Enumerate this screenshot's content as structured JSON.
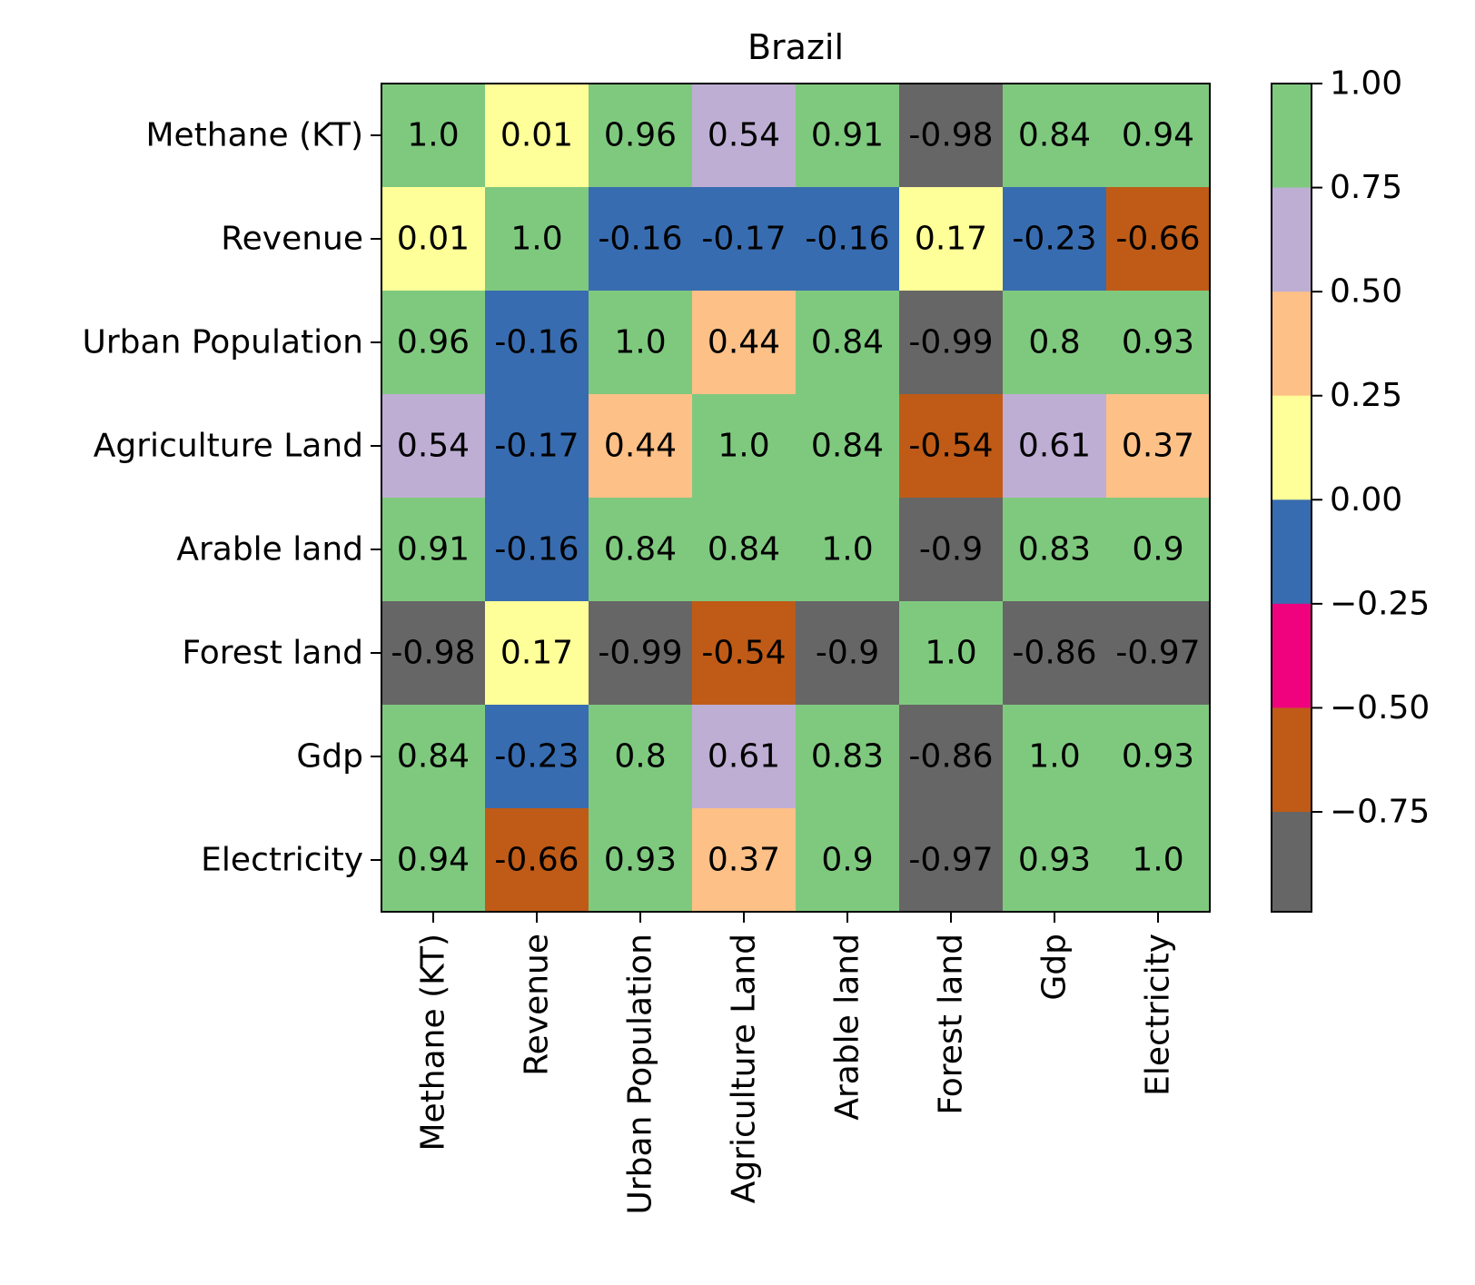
{
  "chart_data": {
    "type": "heatmap",
    "title": "Brazil",
    "xlabel": "",
    "ylabel": "",
    "labels": [
      "Methane (KT)",
      "Revenue",
      "Urban Population",
      "Agriculture Land",
      "Arable land",
      "Forest land",
      "Gdp",
      "Electricity"
    ],
    "values": [
      [
        1.0,
        0.01,
        0.96,
        0.54,
        0.91,
        -0.98,
        0.84,
        0.94
      ],
      [
        0.01,
        1.0,
        -0.16,
        -0.17,
        -0.16,
        0.17,
        -0.23,
        -0.66
      ],
      [
        0.96,
        -0.16,
        1.0,
        0.44,
        0.84,
        -0.99,
        0.8,
        0.93
      ],
      [
        0.54,
        -0.17,
        0.44,
        1.0,
        0.84,
        -0.54,
        0.61,
        0.37
      ],
      [
        0.91,
        -0.16,
        0.84,
        0.84,
        1.0,
        -0.9,
        0.83,
        0.9
      ],
      [
        -0.98,
        0.17,
        -0.99,
        -0.54,
        -0.9,
        1.0,
        -0.86,
        -0.97
      ],
      [
        0.84,
        -0.23,
        0.8,
        0.61,
        0.83,
        -0.86,
        1.0,
        0.93
      ],
      [
        0.94,
        -0.66,
        0.93,
        0.37,
        0.9,
        -0.97,
        0.93,
        1.0
      ]
    ],
    "cell_labels": [
      [
        "1.0",
        "0.01",
        "0.96",
        "0.54",
        "0.91",
        "-0.98",
        "0.84",
        "0.94"
      ],
      [
        "0.01",
        "1.0",
        "-0.16",
        "-0.17",
        "-0.16",
        "0.17",
        "-0.23",
        "-0.66"
      ],
      [
        "0.96",
        "-0.16",
        "1.0",
        "0.44",
        "0.84",
        "-0.99",
        "0.8",
        "0.93"
      ],
      [
        "0.54",
        "-0.17",
        "0.44",
        "1.0",
        "0.84",
        "-0.54",
        "0.61",
        "0.37"
      ],
      [
        "0.91",
        "-0.16",
        "0.84",
        "0.84",
        "1.0",
        "-0.9",
        "0.83",
        "0.9"
      ],
      [
        "-0.98",
        "0.17",
        "-0.99",
        "-0.54",
        "-0.9",
        "1.0",
        "-0.86",
        "-0.97"
      ],
      [
        "0.84",
        "-0.23",
        "0.8",
        "0.61",
        "0.83",
        "-0.86",
        "1.0",
        "0.93"
      ],
      [
        "0.94",
        "-0.66",
        "0.93",
        "0.37",
        "0.9",
        "-0.97",
        "0.93",
        "1.0"
      ]
    ],
    "colorbar": {
      "vmin": -0.99,
      "vmax": 1.0,
      "tick_values": [
        1.0,
        0.75,
        0.5,
        0.25,
        0.0,
        -0.25,
        -0.5,
        -0.75
      ],
      "tick_labels": [
        "1.00",
        "0.75",
        "0.50",
        "0.25",
        "0.00",
        "−0.25",
        "−0.50",
        "−0.75"
      ],
      "bands": [
        {
          "from": 0.75,
          "to": 1.0,
          "color": "#7fc97f"
        },
        {
          "from": 0.5,
          "to": 0.75,
          "color": "#beaed4"
        },
        {
          "from": 0.25,
          "to": 0.5,
          "color": "#fdc086"
        },
        {
          "from": 0.0,
          "to": 0.25,
          "color": "#ffff99"
        },
        {
          "from": -0.25,
          "to": 0.0,
          "color": "#386cb0"
        },
        {
          "from": -0.5,
          "to": -0.25,
          "color": "#f0027f"
        },
        {
          "from": -0.75,
          "to": -0.5,
          "color": "#bf5b17"
        },
        {
          "from": -0.99,
          "to": -0.75,
          "color": "#666666"
        }
      ]
    },
    "grid": false,
    "colormap": "Accent"
  }
}
